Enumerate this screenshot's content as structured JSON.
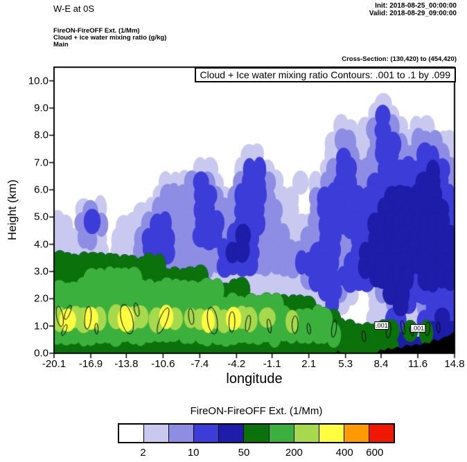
{
  "header": {
    "title": "W-E at 0S",
    "init_label": "Init: 2018-08-25_00:00:00",
    "valid_label": "Valid: 2018-08-29_09:00:00",
    "field_lines": [
      "FireON-FireOFF Ext.  (1/Mm)",
      "Cloud + ice water mixing ratio  (g/kg)",
      "Main"
    ],
    "cross_section": "Cross-Section: (130,420) to (454,420)"
  },
  "plot": {
    "contour_title": "Cloud + Ice water mixing ratio Contours: .001 to .1 by .099",
    "xlabel": "longitude",
    "ylabel": "Height (km)",
    "x_ticks": [
      "-20.1",
      "-16.9",
      "-13.8",
      "-10.6",
      "-7.4",
      "-4.2",
      "-1.1",
      "2.1",
      "5.3",
      "8.4",
      "11.6",
      "14.8"
    ],
    "y_ticks": [
      "0.0",
      "1.0",
      "2.0",
      "3.0",
      "4.0",
      "5.0",
      "6.0",
      "7.0",
      "8.0",
      "9.0",
      "10.0"
    ]
  },
  "colorbar": {
    "title": "FireON-FireOFF Ext.  (1/Mm)",
    "colors": [
      "#ffffff",
      "#c9c9f0",
      "#8d8de4",
      "#3c3cd8",
      "#1d1da9",
      "#0b720b",
      "#3cb03c",
      "#a6d94c",
      "#ffff42",
      "#ff9a00",
      "#f01800"
    ],
    "tick_labels": [
      "2",
      "10",
      "50",
      "200",
      "400",
      "600"
    ],
    "tick_positions": [
      0.091,
      0.273,
      0.455,
      0.636,
      0.818,
      0.927
    ]
  },
  "chart_data": {
    "type": "contour",
    "title": "Cloud + Ice water mixing ratio Contours: .001 to .1 by .099",
    "xlabel": "longitude",
    "ylabel": "Height (km)",
    "x_range": [
      -20.1,
      14.8
    ],
    "y_range": [
      0,
      10.5
    ],
    "shaded_field": "FireON-FireOFF Ext. (1/Mm)",
    "line_contour_levels": [
      0.001,
      0.1
    ],
    "colorbar_values": [
      2,
      10,
      50,
      200,
      400,
      600
    ],
    "class_colors": [
      "#ffffff",
      "#c9c9f0",
      "#8d8de4",
      "#3c3cd8",
      "#1d1da9",
      "#0b720b",
      "#3cb03c",
      "#a6d94c",
      "#ffff42"
    ],
    "grid": {
      "nx": 48,
      "ny": 21,
      "rows": [
        "000000000000000000000000000000000000000000000000",
        "000000000000000000000000000000000000000000000000",
        "000000000000000000000000000000000000000100000000",
        "000000000000000000000000000000000000001310000000",
        "000000000000000000000000000000000011012321011000",
        "000000000000000000000000000000000122112332122211",
        "000000000000000000000001100000000132112332223321",
        "000000000000000001100013310000001233222333333432",
        "000000000000011123210023321001012233223333334432",
        "000000000000122223321233321110023333333344444433",
        "000121000011222223322233322110023333333444444443",
        "110232001112332223332233322111123333334444444443",
        "111221011123332223332343222211223322334444444444",
        "111111011123332222223443222222233322344444444444",
        "555555555555522222223333222223333323344444444444",
        "555566666655555555111111111111233333334444434444",
        "666666666666666666665551111111113321001244333333",
        "666666666666666666666666666555511310001124312333",
        "787787678776787677877877676676666500001133113343",
        "666666666666666666666666666666666655555553515444",
        "555555555555555555555555555555555555555554444444"
      ]
    },
    "terrain": [
      [
        [
          8.05,
          0
        ],
        [
          8.3,
          0.14
        ],
        [
          8.7,
          0.1
        ],
        [
          9.0,
          0.2
        ],
        [
          9.35,
          0.14
        ],
        [
          9.8,
          0.24
        ],
        [
          10.2,
          0.18
        ],
        [
          10.6,
          0.32
        ],
        [
          11.0,
          0.26
        ],
        [
          11.4,
          0.34
        ],
        [
          11.8,
          0.3
        ],
        [
          12.2,
          0.4
        ],
        [
          12.6,
          0.36
        ],
        [
          13.0,
          0.52
        ],
        [
          13.4,
          0.46
        ],
        [
          13.8,
          0.58
        ],
        [
          14.2,
          0.62
        ],
        [
          14.5,
          0.7
        ],
        [
          14.8,
          0.8
        ],
        [
          14.8,
          0
        ]
      ],
      [
        [
          4.45,
          0
        ],
        [
          4.65,
          0.12
        ],
        [
          4.85,
          0
        ]
      ]
    ],
    "contour_loops": [
      [
        -19.6,
        1.35,
        0.28,
        0.38
      ],
      [
        -19.2,
        0.85,
        0.16,
        0.22
      ],
      [
        -18.9,
        1.5,
        0.2,
        0.28
      ],
      [
        -17.15,
        1.3,
        0.28,
        0.42
      ],
      [
        -16.4,
        0.9,
        0.14,
        0.2
      ],
      [
        -13.75,
        1.25,
        0.5,
        0.55
      ],
      [
        -12.9,
        1.6,
        0.2,
        0.25
      ],
      [
        -10.6,
        1.2,
        0.32,
        0.5
      ],
      [
        -8.15,
        1.35,
        0.22,
        0.3
      ],
      [
        -6.3,
        1.2,
        0.42,
        0.5
      ],
      [
        -4.6,
        1.15,
        0.26,
        0.38
      ],
      [
        -3.2,
        1.1,
        0.2,
        0.3
      ],
      [
        -1.35,
        1.0,
        0.16,
        0.26
      ],
      [
        0.9,
        1.05,
        0.26,
        0.32
      ],
      [
        2.1,
        0.9,
        0.14,
        0.2
      ],
      [
        4.3,
        0.9,
        0.2,
        0.32
      ],
      [
        6.9,
        0.62,
        0.16,
        0.2
      ],
      [
        9.05,
        0.85,
        0.2,
        0.3
      ],
      [
        10.3,
        0.95,
        0.16,
        0.26
      ],
      [
        11.05,
        0.8,
        0.12,
        0.18
      ],
      [
        12.45,
        0.9,
        0.2,
        0.26
      ],
      [
        13.4,
        0.95,
        0.14,
        0.2
      ]
    ],
    "inline_labels": [
      {
        "text": ".001",
        "x": 8.45,
        "y": 1.02
      },
      {
        "text": ".001",
        "x": 11.62,
        "y": 0.92
      }
    ]
  }
}
